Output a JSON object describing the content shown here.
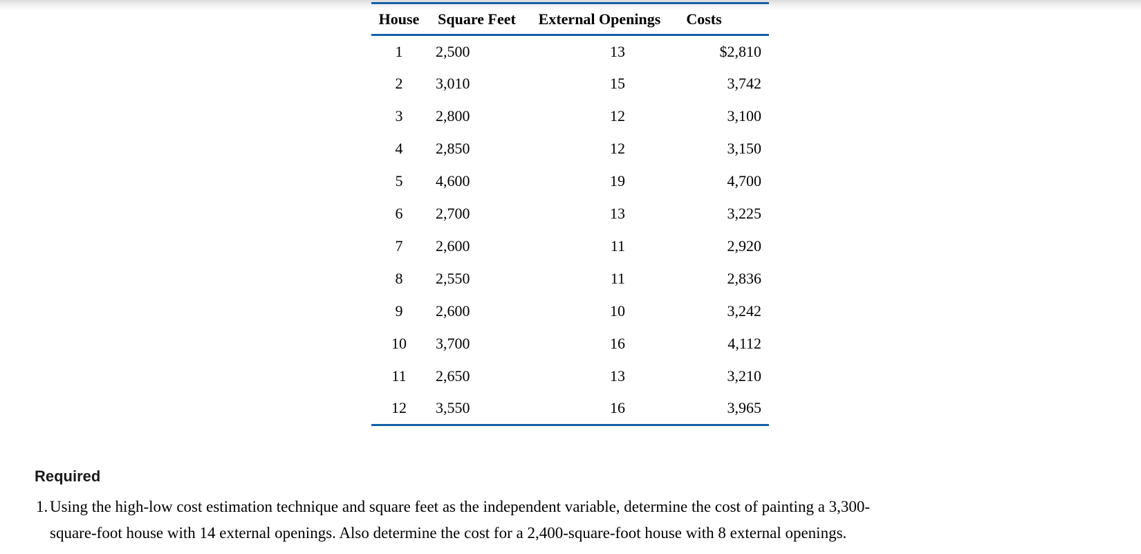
{
  "colors": {
    "rule_blue": "#1460A8",
    "text": "#000000",
    "page_background": "#ffffff"
  },
  "table": {
    "headers": [
      "House",
      "Square Feet",
      "External Openings",
      "Costs"
    ],
    "rows": [
      {
        "house": "1",
        "square_feet": "2,500",
        "external_openings": "13",
        "costs": "$2,810"
      },
      {
        "house": "2",
        "square_feet": "3,010",
        "external_openings": "15",
        "costs": "3,742"
      },
      {
        "house": "3",
        "square_feet": "2,800",
        "external_openings": "12",
        "costs": "3,100"
      },
      {
        "house": "4",
        "square_feet": "2,850",
        "external_openings": "12",
        "costs": "3,150"
      },
      {
        "house": "5",
        "square_feet": "4,600",
        "external_openings": "19",
        "costs": "4,700"
      },
      {
        "house": "6",
        "square_feet": "2,700",
        "external_openings": "13",
        "costs": "3,225"
      },
      {
        "house": "7",
        "square_feet": "2,600",
        "external_openings": "11",
        "costs": "2,920"
      },
      {
        "house": "8",
        "square_feet": "2,550",
        "external_openings": "11",
        "costs": "2,836"
      },
      {
        "house": "9",
        "square_feet": "2,600",
        "external_openings": "10",
        "costs": "3,242"
      },
      {
        "house": "10",
        "square_feet": "3,700",
        "external_openings": "16",
        "costs": "4,112"
      },
      {
        "house": "11",
        "square_feet": "2,650",
        "external_openings": "13",
        "costs": "3,210"
      },
      {
        "house": "12",
        "square_feet": "3,550",
        "external_openings": "16",
        "costs": "3,965"
      }
    ]
  },
  "required": {
    "heading": "Required",
    "items": [
      {
        "number": "1.",
        "lines": [
          "Using the high-low cost estimation technique and square feet as the independent variable, determine the cost of painting a 3,300-",
          "square-foot house with 14 external openings. Also determine the cost for a 2,400-square-foot house with 8 external openings."
        ]
      }
    ]
  }
}
